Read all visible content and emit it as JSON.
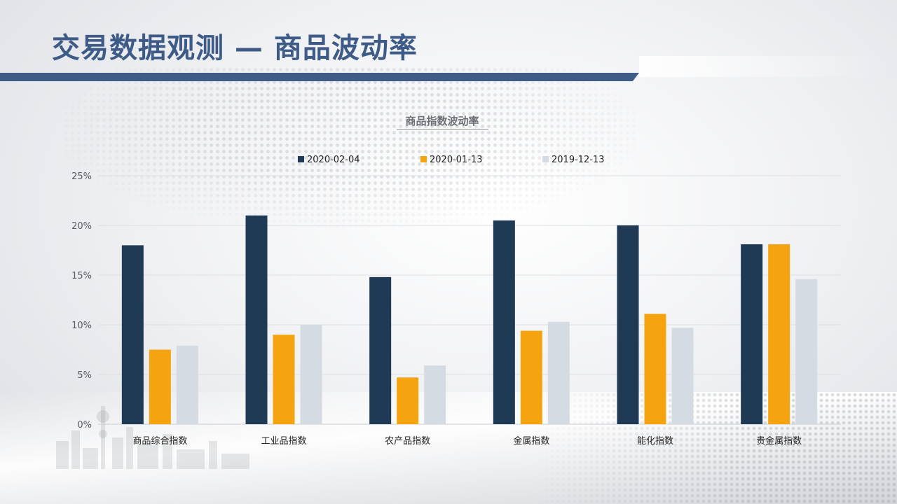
{
  "page": {
    "title": "交易数据观测 — 商品波动率"
  },
  "colors": {
    "title": "#3d5b86",
    "accent_bar": "#3f5c87",
    "series": [
      "#1f3a55",
      "#f5a40f",
      "#d5dbe3"
    ]
  },
  "chart_data": {
    "type": "bar",
    "title": "商品指数波动率",
    "categories": [
      "商品综合指数",
      "工业品指数",
      "农产品指数",
      "金属指数",
      "能化指数",
      "贵金属指数"
    ],
    "series": [
      {
        "name": "2020-02-04",
        "values": [
          18.0,
          21.0,
          14.8,
          20.5,
          20.0,
          18.1
        ]
      },
      {
        "name": "2020-01-13",
        "values": [
          7.5,
          9.0,
          4.7,
          9.4,
          11.1,
          18.1
        ]
      },
      {
        "name": "2019-12-13",
        "values": [
          7.9,
          10.0,
          5.9,
          10.3,
          9.7,
          14.6
        ]
      }
    ],
    "ylim": [
      0,
      25
    ],
    "yticks": [
      0,
      5,
      10,
      15,
      20,
      25
    ],
    "ytick_labels": [
      "0%",
      "5%",
      "10%",
      "15%",
      "20%",
      "25%"
    ],
    "grid": true,
    "legend": "top"
  }
}
